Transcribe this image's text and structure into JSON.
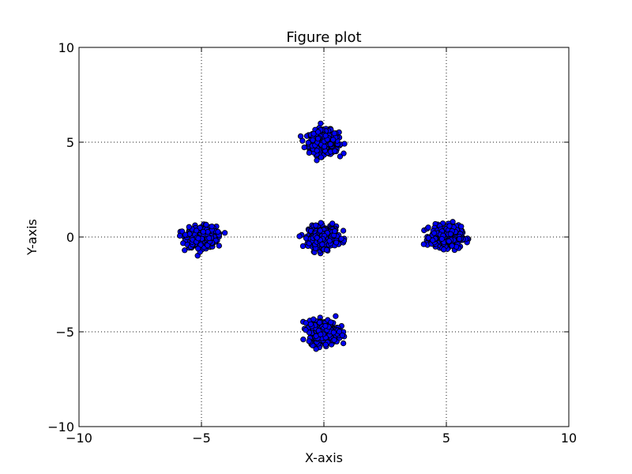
{
  "chart_data": {
    "type": "scatter",
    "title": "Figure plot",
    "xlabel": "X-axis",
    "ylabel": "Y-axis",
    "xlim": [
      -10,
      10
    ],
    "ylim": [
      -10,
      10
    ],
    "xticks": [
      -10,
      -5,
      0,
      5,
      10
    ],
    "yticks": [
      -10,
      -5,
      0,
      5,
      10
    ],
    "xtick_labels": [
      "−10",
      "−5",
      "0",
      "5",
      "10"
    ],
    "ytick_labels": [
      "−10",
      "−5",
      "0",
      "5",
      "10"
    ],
    "grid": true,
    "marker_color": "#0000ff",
    "marker_edge_color": "#000000",
    "clusters": [
      {
        "center": [
          0,
          5
        ],
        "spread": [
          0.55,
          0.55
        ]
      },
      {
        "center": [
          -5,
          0
        ],
        "spread": [
          0.55,
          0.5
        ]
      },
      {
        "center": [
          0,
          0
        ],
        "spread": [
          0.55,
          0.5
        ]
      },
      {
        "center": [
          5,
          0
        ],
        "spread": [
          0.55,
          0.5
        ]
      },
      {
        "center": [
          0,
          -5
        ],
        "spread": [
          0.55,
          0.55
        ]
      }
    ]
  }
}
